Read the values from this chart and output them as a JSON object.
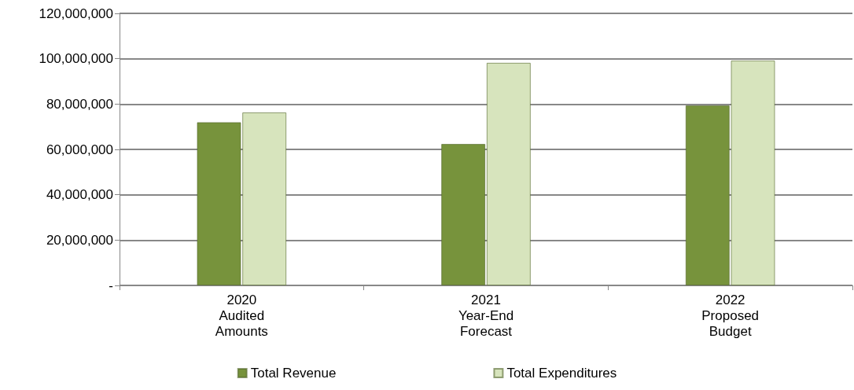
{
  "chart_data": {
    "type": "bar",
    "categories": [
      "2020\nAudited\nAmounts",
      "2021\nYear-End\nForecast",
      "2022\nProposed\nBudget"
    ],
    "series": [
      {
        "name": "Total Revenue",
        "color": "#77933c",
        "values": [
          72000000,
          62400000,
          79400000
        ]
      },
      {
        "name": "Total Expenditures",
        "color": "#d7e4bd",
        "values": [
          76300000,
          98200000,
          99200000
        ]
      }
    ],
    "ylim": [
      0,
      120000000
    ],
    "yticks": [
      {
        "value": 0,
        "label": "-"
      },
      {
        "value": 20000000,
        "label": "20,000,000"
      },
      {
        "value": 40000000,
        "label": "40,000,000"
      },
      {
        "value": 60000000,
        "label": "60,000,000"
      },
      {
        "value": 80000000,
        "label": "80,000,000"
      },
      {
        "value": 100000000,
        "label": "100,000,000"
      },
      {
        "value": 120000000,
        "label": "120,000,000"
      }
    ],
    "grid": "y",
    "legend": "bottom"
  }
}
